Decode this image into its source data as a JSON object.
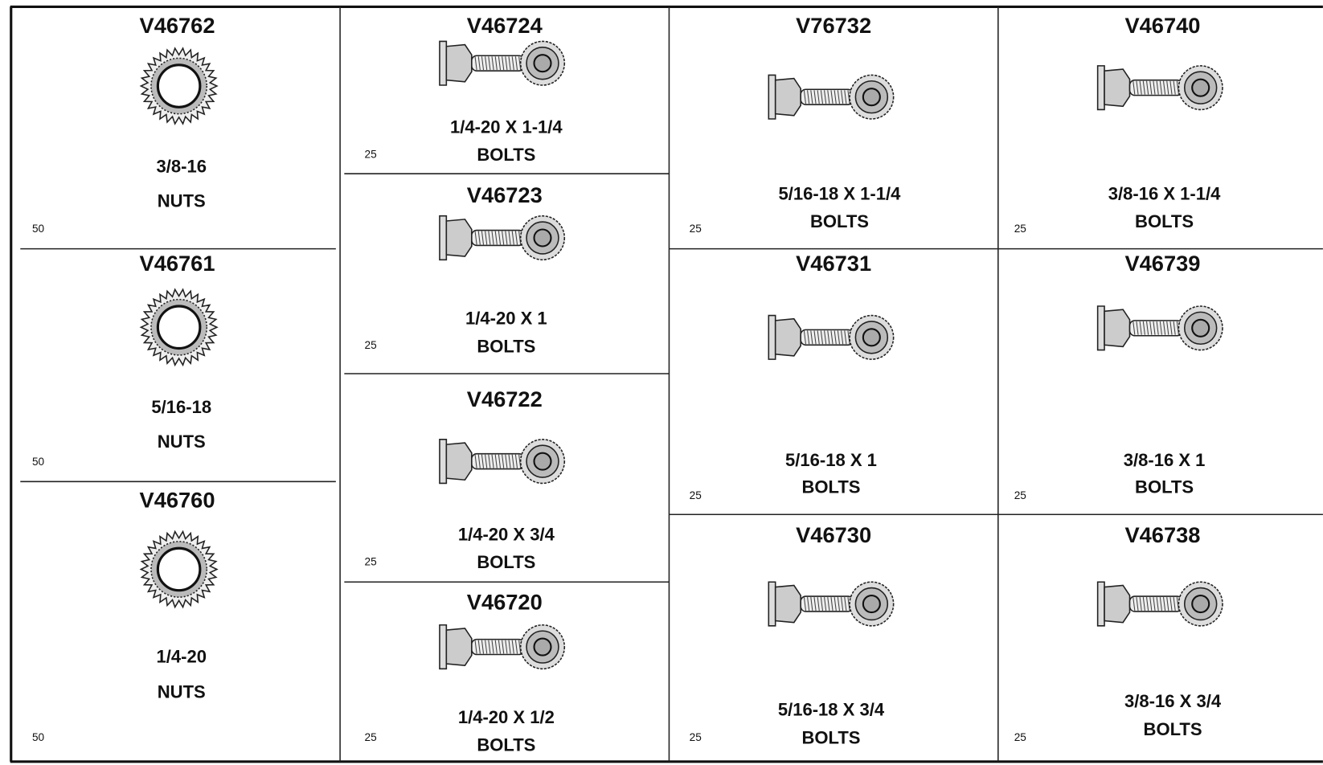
{
  "columns": [
    {
      "cells": [
        {
          "code": "V46762",
          "size": "3/8-16",
          "type": "NUTS",
          "qty": 50
        },
        {
          "code": "V46761",
          "size": "5/16-18",
          "type": "NUTS",
          "qty": 50
        },
        {
          "code": "V46760",
          "size": "1/4-20",
          "type": "NUTS",
          "qty": 50
        }
      ]
    },
    {
      "cells": [
        {
          "code": "V46724",
          "size": "1/4-20 X 1-1/4",
          "type": "BOLTS",
          "qty": 25
        },
        {
          "code": "V46723",
          "size": "1/4-20 X 1",
          "type": "BOLTS",
          "qty": 25
        },
        {
          "code": "V46722",
          "size": "1/4-20 X 3/4",
          "type": "BOLTS",
          "qty": 25
        },
        {
          "code": "V46720",
          "size": "1/4-20 X 1/2",
          "type": "BOLTS",
          "qty": 25
        }
      ]
    },
    {
      "cells": [
        {
          "code": "V76732",
          "size": "5/16-18 X 1-1/4",
          "type": "BOLTS",
          "qty": 25
        },
        {
          "code": "V46731",
          "size": "5/16-18 X 1",
          "type": "BOLTS",
          "qty": 25
        },
        {
          "code": "V46730",
          "size": "5/16-18 X 3/4",
          "type": "BOLTS",
          "qty": 25
        }
      ]
    },
    {
      "cells": [
        {
          "code": "V46740",
          "size": "3/8-16 X 1-1/4",
          "type": "BOLTS",
          "qty": 25
        },
        {
          "code": "V46739",
          "size": "3/8-16 X 1",
          "type": "BOLTS",
          "qty": 25
        },
        {
          "code": "V46738",
          "size": "3/8-16 X 3/4",
          "type": "BOLTS",
          "qty": 25
        }
      ]
    }
  ]
}
